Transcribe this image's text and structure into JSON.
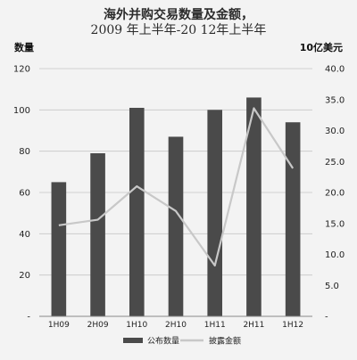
{
  "chart_data": {
    "type": "bar+line",
    "title_line1": "海外并购交易数量及金额，",
    "title_line2": "2009  年上半年-20 12年上半年",
    "y_left_label": "数量",
    "y_right_label": "10亿美元",
    "categories": [
      "1H09",
      "2H09",
      "1H10",
      "2H10",
      "1H11",
      "2H11",
      "1H12"
    ],
    "series": [
      {
        "name": "公布数量",
        "type": "bar",
        "axis": "left",
        "values": [
          65,
          79,
          101,
          87,
          100,
          106,
          94
        ]
      },
      {
        "name": "披露金额",
        "type": "line",
        "axis": "right",
        "values": [
          14.7,
          15.6,
          21.0,
          17.0,
          8.2,
          33.6,
          23.9
        ]
      }
    ],
    "y_left": {
      "min": 0,
      "max": 120,
      "step": 20,
      "ticks": [
        "-",
        "20",
        "40",
        "60",
        "80",
        "100",
        "120"
      ]
    },
    "y_right": {
      "min": 0,
      "max": 40,
      "step": 5,
      "ticks": [
        "-",
        "5.0",
        "10.0",
        "15.0",
        "20.0",
        "25.0",
        "30.0",
        "35.0",
        "40.0"
      ]
    },
    "grid": true,
    "legend_position": "bottom",
    "colors": {
      "bar": "#4a4a4a",
      "line": "#c8c8c8",
      "grid": "#c6c6c6"
    }
  }
}
